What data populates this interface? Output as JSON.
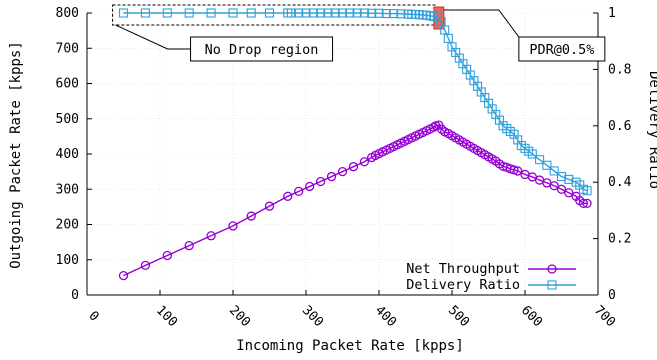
{
  "chart_data": {
    "type": "line",
    "xlabel": "Incoming Packet Rate [kpps]",
    "ylabel": "Outgoing Packet Rate [kpps]",
    "y2label": "Delivery Ratio",
    "xlim": [
      0,
      700
    ],
    "ylim": [
      0,
      800
    ],
    "y2lim": [
      0,
      1
    ],
    "xticks": [
      "0",
      "100",
      "200",
      "300",
      "400",
      "500",
      "600",
      "700"
    ],
    "yticks": [
      "0",
      "100",
      "200",
      "300",
      "400",
      "500",
      "600",
      "700",
      "800"
    ],
    "y2ticks": [
      "0",
      "0.2",
      "0.4",
      "0.6",
      "0.8",
      "1"
    ],
    "grid": true,
    "legend_position": "bottom-right",
    "series": [
      {
        "name": "Net Throughput",
        "axis": "left",
        "color": "#9400d3",
        "marker": "circle",
        "x": [
          50,
          80,
          110,
          140,
          170,
          200,
          225,
          250,
          275,
          290,
          305,
          320,
          335,
          350,
          365,
          380,
          390,
          395,
          400,
          405,
          410,
          415,
          420,
          425,
          430,
          435,
          440,
          445,
          450,
          455,
          460,
          465,
          470,
          475,
          478,
          482,
          486,
          490,
          495,
          500,
          505,
          510,
          515,
          520,
          525,
          530,
          535,
          540,
          545,
          550,
          555,
          560,
          565,
          570,
          575,
          580,
          585,
          590,
          600,
          610,
          620,
          630,
          640,
          650,
          660,
          670,
          675,
          680,
          685
        ],
        "y": [
          55,
          84,
          112,
          140,
          168,
          196,
          224,
          252,
          280,
          294,
          308,
          322,
          336,
          350,
          364,
          378,
          390,
          396,
          401,
          406,
          411,
          416,
          421,
          426,
          431,
          436,
          441,
          446,
          451,
          456,
          461,
          466,
          471,
          476,
          480,
          482,
          470,
          463,
          458,
          452,
          446,
          440,
          434,
          428,
          422,
          416,
          410,
          404,
          398,
          392,
          386,
          380,
          372,
          365,
          362,
          358,
          355,
          352,
          342,
          335,
          326,
          318,
          310,
          300,
          290,
          280,
          268,
          260,
          260
        ]
      },
      {
        "name": "Delivery Ratio",
        "axis": "right",
        "color": "#2ea0da",
        "marker": "square",
        "x": [
          50,
          80,
          110,
          140,
          170,
          200,
          225,
          250,
          275,
          280,
          290,
          300,
          310,
          320,
          330,
          340,
          350,
          360,
          370,
          380,
          390,
          400,
          410,
          420,
          430,
          440,
          445,
          450,
          455,
          460,
          465,
          470,
          475,
          480,
          485,
          490,
          495,
          500,
          505,
          510,
          515,
          520,
          525,
          530,
          535,
          540,
          545,
          550,
          555,
          560,
          565,
          570,
          575,
          580,
          585,
          590,
          595,
          600,
          605,
          610,
          620,
          630,
          640,
          650,
          660,
          670,
          675,
          680,
          685
        ],
        "y": [
          1,
          1,
          1,
          1,
          1,
          1,
          1,
          1,
          1,
          1,
          1,
          1,
          1,
          1,
          1,
          1,
          1,
          1,
          1,
          1,
          0.999,
          0.999,
          0.998,
          0.998,
          0.997,
          0.996,
          0.995,
          0.995,
          0.994,
          0.993,
          0.992,
          0.99,
          0.988,
          0.985,
          0.97,
          0.94,
          0.91,
          0.88,
          0.86,
          0.84,
          0.82,
          0.8,
          0.78,
          0.76,
          0.74,
          0.72,
          0.7,
          0.68,
          0.66,
          0.64,
          0.62,
          0.6,
          0.59,
          0.58,
          0.57,
          0.55,
          0.53,
          0.52,
          0.51,
          0.5,
          0.48,
          0.46,
          0.44,
          0.42,
          0.41,
          0.4,
          0.39,
          0.375,
          0.37
        ]
      }
    ],
    "annotations": [
      {
        "text": "No Drop region"
      },
      {
        "text": "PDR@0.5%"
      }
    ],
    "highlight_marker_color": "#e8685d"
  }
}
